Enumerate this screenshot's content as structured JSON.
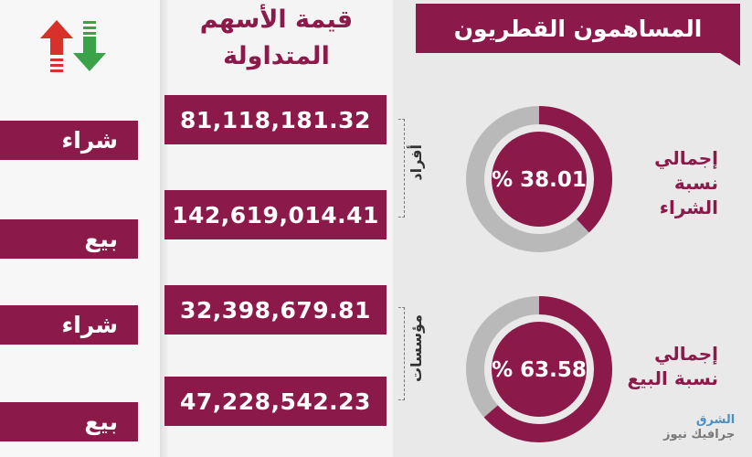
{
  "title": "المساهمون القطريون",
  "heading": [
    "قيمة الأسهم",
    "المتداولة"
  ],
  "colors": {
    "maroon": "#8b1a4a",
    "gray": "#b9b9b9",
    "up_arrow": "#d8302a",
    "down_arrow": "#3aa34a"
  },
  "icons": [
    "up-arrow-icon",
    "down-arrow-icon"
  ],
  "groups": [
    {
      "label": "أفراد",
      "buy_label": "شراء",
      "buy_value": "81,118,181.32",
      "sell_label": "بيع",
      "sell_value": "142,619,014.41"
    },
    {
      "label": "مؤسسات",
      "buy_label": "شراء",
      "buy_value": "32,398,679.81",
      "sell_label": "بيع",
      "sell_value": "47,228,542.23"
    }
  ],
  "donuts": [
    {
      "percent_text": "% 38.01",
      "value": 38.01,
      "label_line1": "إجمالي",
      "label_line2": "نسبة الشراء"
    },
    {
      "percent_text": "% 63.58",
      "value": 63.58,
      "label_line1": "إجمالي",
      "label_line2": "نسبة البيع"
    }
  ],
  "brand": {
    "line1": "الشرق",
    "line2": "جرافيك نيوز"
  }
}
